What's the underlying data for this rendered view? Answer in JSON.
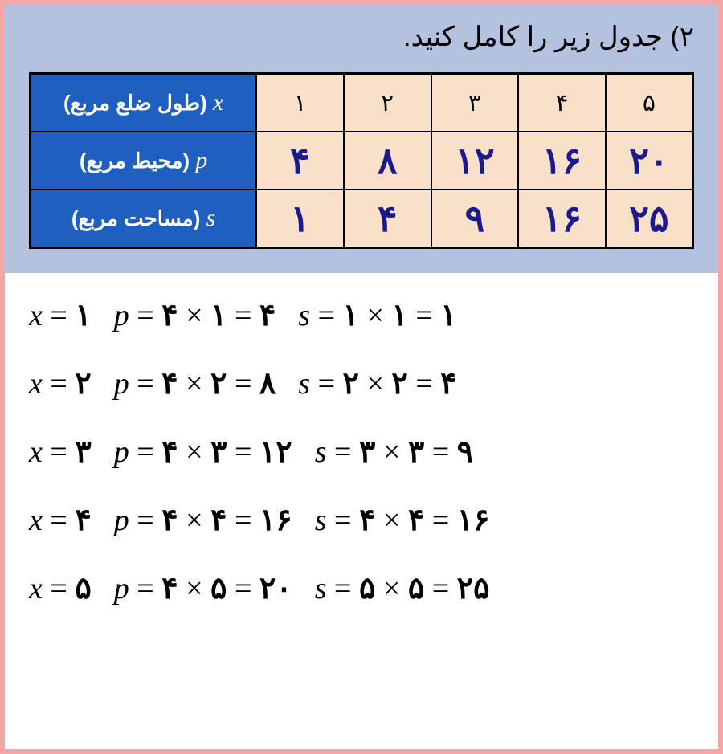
{
  "colors": {
    "page_border": "#f4a6a6",
    "top_bg": "#b4c2e0",
    "header_cell_bg": "#1f5fbf",
    "header_cell_fg": "#ffffff",
    "data_cell_bg": "#f9e0c9",
    "x_row_fg": "#000000",
    "value_fg": "#1a1a8a",
    "equation_fg": "#000000",
    "table_border": "#000000"
  },
  "typography": {
    "heading_fontsize": 34,
    "rowlabel_fontsize": 26,
    "xcell_fontsize": 30,
    "valcell_fontsize": 46,
    "equation_fontsize": 38
  },
  "heading": "۲) جدول زیر را کامل کنید.",
  "table": {
    "row_x": {
      "latin": "x",
      "persian": "(طول ضلع مربع)",
      "values": [
        "۱",
        "۲",
        "۳",
        "۴",
        "۵"
      ]
    },
    "row_p": {
      "latin": "p",
      "persian": "(محیط مربع)",
      "values": [
        "۴",
        "۸",
        "۱۲",
        "۱۶",
        "۲۰"
      ]
    },
    "row_s": {
      "latin": "s",
      "persian": "(مساحت مربع)",
      "values": [
        "۱",
        "۴",
        "۹",
        "۱۶",
        "۲۵"
      ]
    }
  },
  "equations": [
    {
      "x": "۱",
      "p_a": "۴",
      "p_b": "۱",
      "p_r": "۴",
      "s_a": "۱",
      "s_b": "۱",
      "s_r": "۱"
    },
    {
      "x": "۲",
      "p_a": "۴",
      "p_b": "۲",
      "p_r": "۸",
      "s_a": "۲",
      "s_b": "۲",
      "s_r": "۴"
    },
    {
      "x": "۳",
      "p_a": "۴",
      "p_b": "۳",
      "p_r": "۱۲",
      "s_a": "۳",
      "s_b": "۳",
      "s_r": "۹"
    },
    {
      "x": "۴",
      "p_a": "۴",
      "p_b": "۴",
      "p_r": "۱۶",
      "s_a": "۴",
      "s_b": "۴",
      "s_r": "۱۶"
    },
    {
      "x": "۵",
      "p_a": "۴",
      "p_b": "۵",
      "p_r": "۲۰",
      "s_a": "۵",
      "s_b": "۵",
      "s_r": "۲۵"
    }
  ]
}
